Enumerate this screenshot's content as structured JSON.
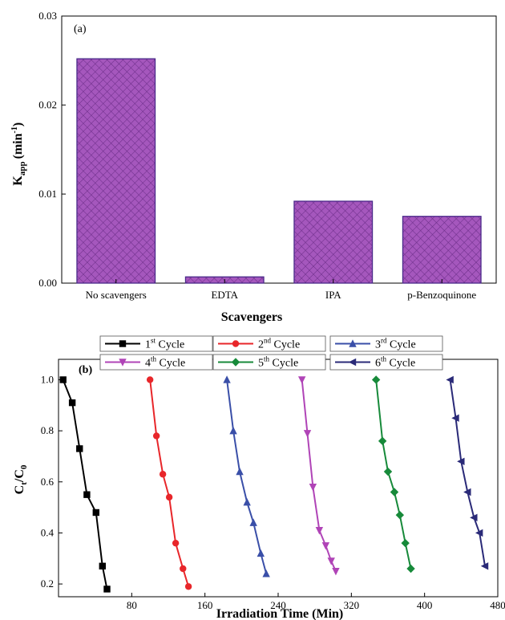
{
  "chart_data": [
    {
      "type": "bar",
      "panel_label": "(a)",
      "categories": [
        "No scavengers",
        "EDTA",
        "IPA",
        "p-Benzoquinone"
      ],
      "values": [
        0.0252,
        0.0007,
        0.0092,
        0.0075
      ],
      "xlabel": "Scavengers",
      "ylabel_main": "K",
      "ylabel_sub": "app",
      "ylabel_unit": "(min",
      "ylabel_sup": "-1",
      "ylabel_close": ")",
      "ylim": [
        0,
        0.03
      ],
      "yticks": [
        "0.00",
        "0.01",
        "0.02",
        "0.03"
      ],
      "ytick_values": [
        0,
        0.01,
        0.02,
        0.03
      ],
      "bar_color": "#9b4db0",
      "grid": false
    },
    {
      "type": "line",
      "panel_label": "(b)",
      "xlabel": "Irradiation Time (Min)",
      "ylabel_main": "C",
      "ylabel_sub1": "t",
      "ylabel_mid": "/C",
      "ylabel_sub2": "0",
      "xlim": [
        0,
        480
      ],
      "ylim": [
        0.15,
        1.08
      ],
      "xticks": [
        "80",
        "160",
        "240",
        "320",
        "400",
        "480"
      ],
      "xtick_values": [
        80,
        160,
        240,
        320,
        400,
        480
      ],
      "yticks": [
        "0.2",
        "0.4",
        "0.6",
        "0.8",
        "1.0"
      ],
      "ytick_values": [
        0.2,
        0.4,
        0.6,
        0.8,
        1.0
      ],
      "legend_placement": "top",
      "series": [
        {
          "name_main": "1",
          "name_sup": "st",
          "name_rest": " Cycle",
          "color": "#000000",
          "marker": "square",
          "x": [
            5,
            15,
            23,
            31,
            41,
            48,
            53
          ],
          "y": [
            1.0,
            0.91,
            0.73,
            0.55,
            0.48,
            0.27,
            0.18
          ]
        },
        {
          "name_main": "2",
          "name_sup": "nd",
          "name_rest": " Cycle",
          "color": "#e8262a",
          "marker": "circle",
          "x": [
            100,
            107,
            114,
            121,
            128,
            136,
            142
          ],
          "y": [
            1.0,
            0.78,
            0.63,
            0.54,
            0.36,
            0.26,
            0.19
          ]
        },
        {
          "name_main": "3",
          "name_sup": "rd",
          "name_rest": " Cycle",
          "color": "#3a4fa8",
          "marker": "triangle-up",
          "x": [
            184,
            191,
            198,
            206,
            213,
            221,
            227
          ],
          "y": [
            1.0,
            0.8,
            0.64,
            0.52,
            0.44,
            0.32,
            0.24
          ]
        },
        {
          "name_main": "4",
          "name_sup": "th",
          "name_rest": " Cycle",
          "color": "#b044b7",
          "marker": "triangle-down",
          "x": [
            266,
            272,
            278,
            285,
            292,
            298,
            303
          ],
          "y": [
            1.0,
            0.79,
            0.58,
            0.41,
            0.35,
            0.29,
            0.25
          ]
        },
        {
          "name_main": "5",
          "name_sup": "th",
          "name_rest": " Cycle",
          "color": "#178a3a",
          "marker": "diamond",
          "x": [
            347,
            354,
            360,
            367,
            373,
            379,
            385
          ],
          "y": [
            1.0,
            0.76,
            0.64,
            0.56,
            0.47,
            0.36,
            0.26
          ]
        },
        {
          "name_main": "6",
          "name_sup": "th",
          "name_rest": " Cycle",
          "color": "#2a2a78",
          "marker": "triangle-left",
          "x": [
            428,
            434,
            440,
            447,
            454,
            460,
            466
          ],
          "y": [
            1.0,
            0.85,
            0.68,
            0.56,
            0.46,
            0.4,
            0.27
          ]
        }
      ]
    }
  ]
}
